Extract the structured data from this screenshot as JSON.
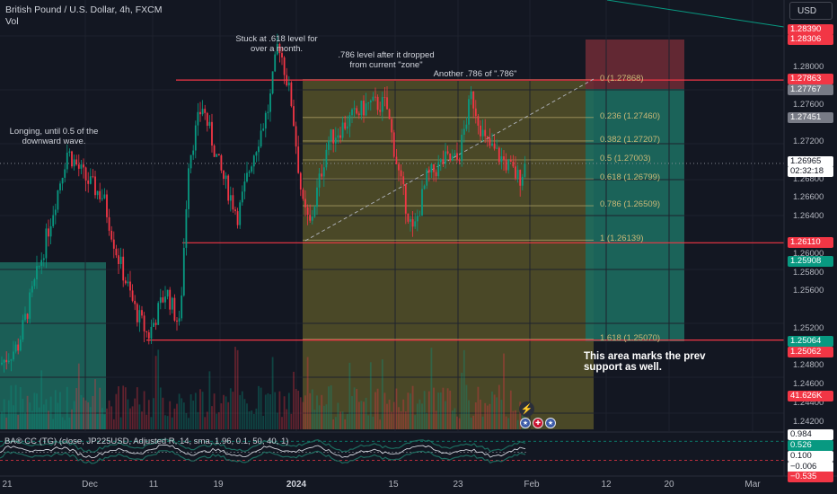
{
  "header": {
    "title": "British Pound / U.S. Dollar, 4h, FXCM",
    "vol_label": "Vol",
    "currency": "USD"
  },
  "indicator": {
    "legend": "BA® CC (TG) (close, JP225USD, Adjusted R, 14, sma, 1.96, 0.1, 50, 40, 1)"
  },
  "annotations": {
    "stuck": "Stuck at .618 level for over a month.",
    "level786": ".786 level after it dropped from current \"zone\"",
    "another786": "Another .786 of \".786\"",
    "longing": "Longing, until 0.5 of the downward wave.",
    "prev_support": "This area marks the prev support as well."
  },
  "fib_levels": [
    {
      "label": "0 (1.27868)",
      "price": 1.27868
    },
    {
      "label": "0.236 (1.27460)",
      "price": 1.2746
    },
    {
      "label": "0.382 (1.27207)",
      "price": 1.27207
    },
    {
      "label": "0.5 (1.27003)",
      "price": 1.27003
    },
    {
      "label": "0.618 (1.26799)",
      "price": 1.26799
    },
    {
      "label": "0.786 (1.26509)",
      "price": 1.26509
    },
    {
      "label": "1 (1.26139)",
      "price": 1.26139
    },
    {
      "label": "1.618 (1.25070)",
      "price": 1.2507
    }
  ],
  "price_axis": {
    "ticks": [
      "1.28000",
      "1.27600",
      "1.27200",
      "1.26800",
      "1.26600",
      "1.26400",
      "1.26000",
      "1.25800",
      "1.25600",
      "1.25200",
      "1.24800",
      "1.24600",
      "1.24400",
      "1.24200"
    ],
    "tags": [
      {
        "text": "1.28390",
        "color": "#f23645"
      },
      {
        "text": "1.28306",
        "color": "#f23645"
      },
      {
        "text": "1.27863",
        "color": "#f23645"
      },
      {
        "text": "1.27767",
        "color": "#787b86"
      },
      {
        "text": "1.27451",
        "color": "#787b86"
      },
      {
        "text": "1.26965",
        "color": "#131722"
      },
      {
        "text": "02:32:18",
        "color": "#131722"
      },
      {
        "text": "1.26110",
        "color": "#f23645"
      },
      {
        "text": "1.25908",
        "color": "#089981"
      },
      {
        "text": "1.25064",
        "color": "#089981"
      },
      {
        "text": "1.25062",
        "color": "#f23645"
      },
      {
        "text": "41.626K",
        "color": "#f23645"
      },
      {
        "text": "0.984",
        "color": "#131722"
      },
      {
        "text": "0.526",
        "color": "#089981"
      },
      {
        "text": "0.100",
        "color": "#131722"
      },
      {
        "text": "−0.006",
        "color": "#131722"
      },
      {
        "text": "−0.535",
        "color": "#f23645"
      }
    ]
  },
  "time_axis": {
    "ticks": [
      {
        "label": "21",
        "bold": false
      },
      {
        "label": "Dec",
        "bold": false
      },
      {
        "label": "11",
        "bold": false
      },
      {
        "label": "19",
        "bold": false
      },
      {
        "label": "2024",
        "bold": true
      },
      {
        "label": "15",
        "bold": false
      },
      {
        "label": "23",
        "bold": false
      },
      {
        "label": "Feb",
        "bold": false
      },
      {
        "label": "12",
        "bold": false
      },
      {
        "label": "20",
        "bold": false
      },
      {
        "label": "Mar",
        "bold": false
      }
    ]
  },
  "chart_data": {
    "type": "candlestick",
    "symbol": "GBPUSD",
    "interval": "4h",
    "current_price": 1.26965,
    "price_range": [
      1.2415,
      1.2862
    ],
    "horizontal_levels": [
      1.27863,
      1.2611,
      1.25062
    ],
    "trade": {
      "entry": 1.27767,
      "stop": 1.28306,
      "target": 1.25908
    },
    "fib_retracement": {
      "from": 1.26139,
      "to": 1.27868
    }
  },
  "colors": {
    "background": "#131722",
    "up": "#089981",
    "down": "#f23645",
    "level_line": "#f23645",
    "fib_zone": "#5d5a2a",
    "target_zone": "#1d6b5f",
    "stop_zone": "#6b2a35"
  },
  "icons": {
    "bolt": "lightning-icon",
    "flags": [
      "us-flag-icon",
      "gb-flag-icon",
      "us-flag-icon"
    ]
  }
}
